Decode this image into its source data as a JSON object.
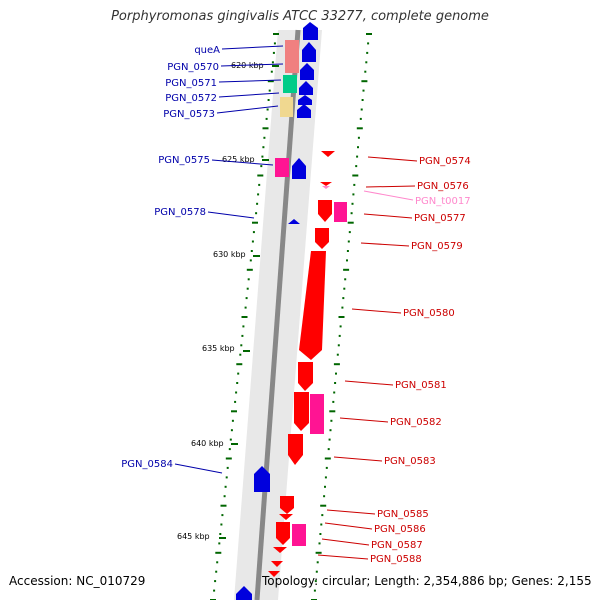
{
  "title": "Porphyromonas gingivalis ATCC 33277, complete genome",
  "footer": {
    "accession": "Accession: NC_010729",
    "topology": "Topology: circular; Length: 2,354,886 bp; Genes: 2,155"
  },
  "colors": {
    "reverse_strand_label": "#0000aa",
    "forward_strand_label": "#cc0000",
    "trna_label": "#ff88cc",
    "backbone": "#888888",
    "tick": "#006600"
  },
  "scale_labels": [
    "620 kbp",
    "625 kbp",
    "630 kbp",
    "635 kbp",
    "640 kbp",
    "645 kbp"
  ],
  "genes_left": [
    {
      "name": "queA",
      "strand": "reverse"
    },
    {
      "name": "PGN_0570",
      "strand": "reverse"
    },
    {
      "name": "PGN_0571",
      "strand": "reverse"
    },
    {
      "name": "PGN_0572",
      "strand": "reverse"
    },
    {
      "name": "PGN_0573",
      "strand": "reverse"
    },
    {
      "name": "PGN_0575",
      "strand": "reverse"
    },
    {
      "name": "PGN_0578",
      "strand": "reverse"
    },
    {
      "name": "PGN_0584",
      "strand": "reverse"
    }
  ],
  "genes_right": [
    {
      "name": "PGN_0574",
      "strand": "forward"
    },
    {
      "name": "PGN_0576",
      "strand": "forward"
    },
    {
      "name": "PGN_t0017",
      "strand": "forward"
    },
    {
      "name": "PGN_0577",
      "strand": "forward"
    },
    {
      "name": "PGN_0579",
      "strand": "forward"
    },
    {
      "name": "PGN_0580",
      "strand": "forward"
    },
    {
      "name": "PGN_0581",
      "strand": "forward"
    },
    {
      "name": "PGN_0582",
      "strand": "forward"
    },
    {
      "name": "PGN_0583",
      "strand": "forward"
    },
    {
      "name": "PGN_0585",
      "strand": "forward"
    },
    {
      "name": "PGN_0586",
      "strand": "forward"
    },
    {
      "name": "PGN_0587",
      "strand": "forward"
    },
    {
      "name": "PGN_0588",
      "strand": "forward"
    }
  ]
}
